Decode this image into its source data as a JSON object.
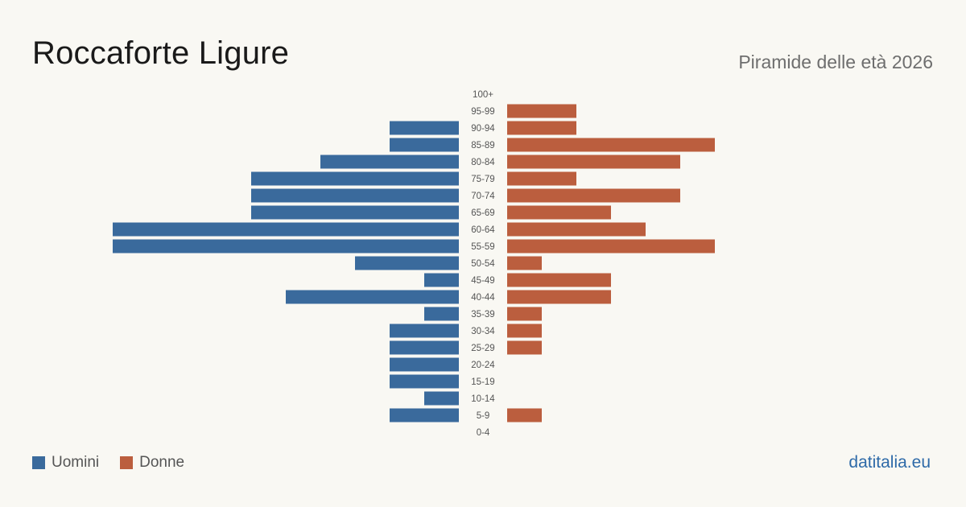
{
  "header": {
    "title": "Roccaforte Ligure",
    "subtitle": "Piramide delle età 2026"
  },
  "legend": {
    "men_label": "Uomini",
    "women_label": "Donne"
  },
  "footer": {
    "source": "datitalia.eu"
  },
  "colors": {
    "men": "#3a6a9c",
    "women": "#bb5e3e",
    "background": "#f9f8f3"
  },
  "chart_data": {
    "type": "bar",
    "orientation": "horizontal-pyramid",
    "categories": [
      "100+",
      "95-99",
      "90-94",
      "85-89",
      "80-84",
      "75-79",
      "70-74",
      "65-69",
      "60-64",
      "55-59",
      "50-54",
      "45-49",
      "40-44",
      "35-39",
      "30-34",
      "25-29",
      "20-24",
      "15-19",
      "10-14",
      "5-9",
      "0-4"
    ],
    "series": [
      {
        "name": "Uomini",
        "values": [
          0,
          0,
          2,
          2,
          4,
          6,
          6,
          6,
          10,
          10,
          3,
          1,
          5,
          1,
          2,
          2,
          2,
          2,
          1,
          2,
          0
        ]
      },
      {
        "name": "Donne",
        "values": [
          0,
          2,
          2,
          6,
          5,
          2,
          5,
          3,
          4,
          6,
          1,
          3,
          3,
          1,
          1,
          1,
          0,
          0,
          0,
          1,
          0
        ]
      }
    ],
    "xlim": [
      0,
      10
    ],
    "legend_position": "bottom-left",
    "grid": false
  }
}
